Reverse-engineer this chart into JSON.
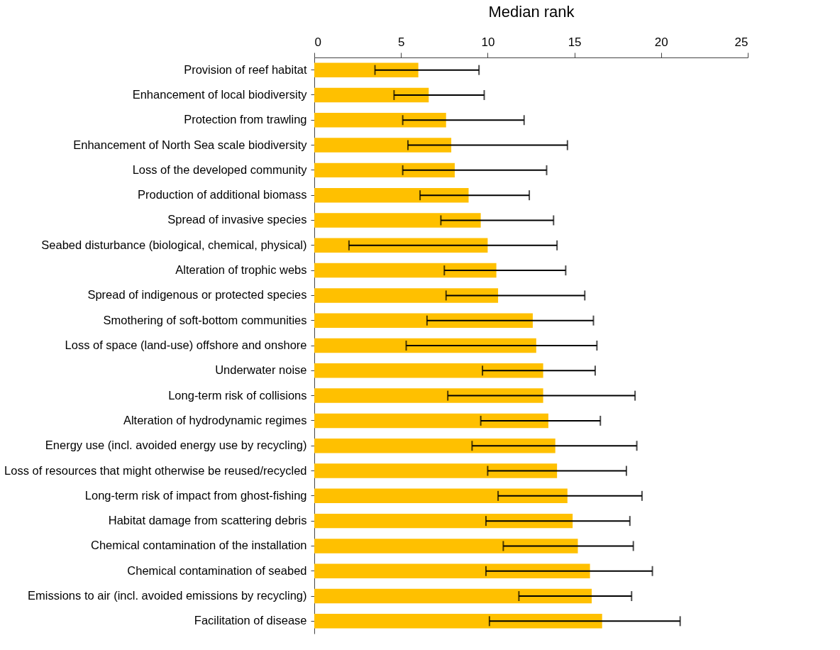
{
  "chart_data": {
    "type": "bar",
    "orientation": "horizontal",
    "xlabel": "Median rank",
    "color": "#ffc000",
    "grid": false,
    "xlim": [
      0,
      25
    ],
    "xticks": [
      0,
      5,
      10,
      15,
      20,
      25
    ],
    "categories": [
      "Provision of reef habitat",
      "Enhancement of local biodiversity",
      "Protection from trawling",
      "Enhancement of North Sea scale biodiversity",
      "Loss of the developed community",
      "Production of additional biomass",
      "Spread of invasive species",
      "Seabed disturbance (biological, chemical, physical)",
      "Alteration of trophic webs",
      "Spread of indigenous or protected species",
      "Smothering of soft-bottom communities",
      "Loss of space (land-use) offshore and onshore",
      "Underwater noise",
      "Long-term risk of collisions",
      "Alteration of hydrodynamic regimes",
      "Energy use (incl. avoided energy use by recycling)",
      "Loss of resources that might otherwise be reused/recycled",
      "Long-term risk of impact from ghost-fishing",
      "Habitat damage from scattering debris",
      "Chemical contamination of the installation",
      "Chemical contamination of seabed",
      "Emissions to air (incl. avoided emissions by recycling)",
      "Facilitation of disease"
    ],
    "values": [
      6.0,
      6.6,
      7.6,
      7.9,
      8.1,
      8.9,
      9.6,
      10.0,
      10.5,
      10.6,
      12.6,
      12.8,
      13.2,
      13.2,
      13.5,
      13.9,
      14.0,
      14.6,
      14.9,
      15.2,
      15.9,
      16.0,
      16.6
    ],
    "errors": [
      [
        3.5,
        9.5
      ],
      [
        4.6,
        9.8
      ],
      [
        5.1,
        12.1
      ],
      [
        5.4,
        14.6
      ],
      [
        5.1,
        13.4
      ],
      [
        6.1,
        12.4
      ],
      [
        7.3,
        13.8
      ],
      [
        2.0,
        14.0
      ],
      [
        7.5,
        14.5
      ],
      [
        7.6,
        15.6
      ],
      [
        6.5,
        16.1
      ],
      [
        5.3,
        16.3
      ],
      [
        9.7,
        16.2
      ],
      [
        7.7,
        18.5
      ],
      [
        9.6,
        16.5
      ],
      [
        9.1,
        18.6
      ],
      [
        10.0,
        18.0
      ],
      [
        10.6,
        18.9
      ],
      [
        9.9,
        18.2
      ],
      [
        10.9,
        18.4
      ],
      [
        9.9,
        19.5
      ],
      [
        11.8,
        18.3
      ],
      [
        10.1,
        21.1
      ]
    ]
  }
}
